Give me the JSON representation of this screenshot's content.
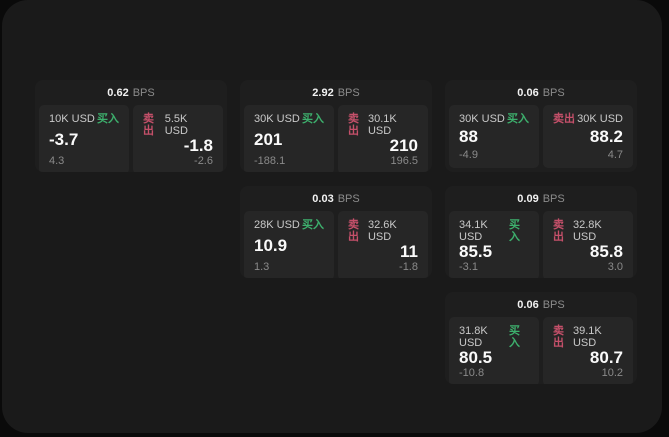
{
  "labels": {
    "bps_unit": "BPS",
    "buy": "买入",
    "sell": "卖出"
  },
  "colors": {
    "background": "#0a0a0a",
    "window": "#1a1a1a",
    "card": "#1e1e1e",
    "panel": "#262626",
    "buy_accent": "#3db06d",
    "sell_accent": "#c5506a"
  },
  "cards": [
    {
      "bps": "0.62",
      "buy": {
        "amount": "10K USD",
        "price": "-3.7",
        "change": "4.3"
      },
      "sell": {
        "amount": "5.5K USD",
        "price": "-1.8",
        "change": "-2.6"
      }
    },
    {
      "bps": "2.92",
      "buy": {
        "amount": "30K USD",
        "price": "201",
        "change": "-188.1"
      },
      "sell": {
        "amount": "30.1K USD",
        "price": "210",
        "change": "196.5"
      }
    },
    {
      "bps": "0.06",
      "buy": {
        "amount": "30K USD",
        "price": "88",
        "change": "-4.9"
      },
      "sell": {
        "amount": "30K USD",
        "price": "88.2",
        "change": "4.7"
      }
    },
    {
      "bps": "0.03",
      "buy": {
        "amount": "28K USD",
        "price": "10.9",
        "change": "1.3"
      },
      "sell": {
        "amount": "32.6K USD",
        "price": "11",
        "change": "-1.8"
      }
    },
    {
      "bps": "0.09",
      "buy": {
        "amount": "34.1K USD",
        "price": "85.5",
        "change": "-3.1"
      },
      "sell": {
        "amount": "32.8K USD",
        "price": "85.8",
        "change": "3.0"
      }
    },
    {
      "bps": "0.06",
      "buy": {
        "amount": "31.8K USD",
        "price": "80.5",
        "change": "-10.8"
      },
      "sell": {
        "amount": "39.1K USD",
        "price": "80.7",
        "change": "10.2"
      }
    }
  ]
}
